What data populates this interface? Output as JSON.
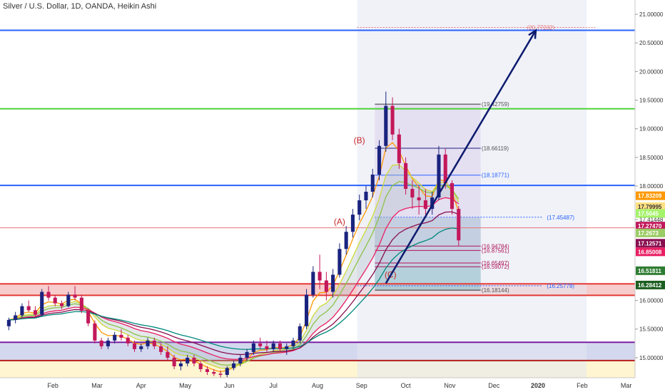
{
  "header": {
    "title": "Silver / U.S. Dollar, 1D, OANDA, Heikin Ashi"
  },
  "chart_data": {
    "type": "candlestick",
    "title": "Silver / U.S. Dollar, 1D, OANDA, Heikin Ashi",
    "y_range": [
      14.65,
      21.25
    ],
    "x_range": [
      -0.2,
      14.2
    ],
    "y_ticks": [
      "21.00000",
      "20.50000",
      "20.00000",
      "19.50000",
      "19.00000",
      "18.50000",
      "18.00000",
      "17.41448",
      "16.00000",
      "15.50000",
      "15.00000"
    ],
    "y_tick_values": [
      21.0,
      20.5,
      20.0,
      19.5,
      19.0,
      18.5,
      18.0,
      17.41448,
      16.0,
      15.5,
      15.0
    ],
    "x_ticks": [
      {
        "label": "Feb",
        "m": 1
      },
      {
        "label": "Mar",
        "m": 2
      },
      {
        "label": "Apr",
        "m": 3
      },
      {
        "label": "May",
        "m": 4
      },
      {
        "label": "Jun",
        "m": 5
      },
      {
        "label": "Jul",
        "m": 6
      },
      {
        "label": "Aug",
        "m": 7
      },
      {
        "label": "Sep",
        "m": 8
      },
      {
        "label": "Oct",
        "m": 9
      },
      {
        "label": "Nov",
        "m": 10
      },
      {
        "label": "Dec",
        "m": 11
      },
      {
        "label": "2020",
        "m": 12
      },
      {
        "label": "Feb",
        "m": 13
      },
      {
        "label": "Mar",
        "m": 14
      }
    ],
    "horizontal_lines": [
      {
        "y": 20.72,
        "color": "#2962ff",
        "width": 2
      },
      {
        "y": 19.35,
        "color": "#4cd137",
        "width": 2
      },
      {
        "y": 18.01,
        "color": "#2962ff",
        "width": 2
      },
      {
        "y": 17.27,
        "color": "#e57373",
        "width": 1
      },
      {
        "y": 16.29,
        "color": "#e53935",
        "width": 2
      },
      {
        "y": 16.09,
        "color": "#e53935",
        "width": 2
      },
      {
        "y": 15.27,
        "color": "#7b1fa2",
        "width": 2
      },
      {
        "y": 14.95,
        "color": "#b71c1c",
        "width": 2
      }
    ],
    "zones": [
      {
        "y1": 16.29,
        "y2": 16.09,
        "color": "#ef9a9a",
        "opacity": 0.5
      },
      {
        "y1": 15.27,
        "y2": 14.95,
        "color": "#9fa8da",
        "opacity": 0.45
      },
      {
        "y1": 14.95,
        "y2": 14.65,
        "color": "#fff3c4",
        "opacity": 0.8
      }
    ],
    "level_labels": [
      {
        "text": "(20.77232)",
        "y": 20.77,
        "m": 11.75,
        "color": "#e57373"
      },
      {
        "text": "(19.42759)",
        "y": 19.43,
        "m": 10.72,
        "color": "#555555"
      },
      {
        "text": "(18.66119)",
        "y": 18.66,
        "m": 10.72,
        "color": "#555555"
      },
      {
        "text": "(18.18771)",
        "y": 18.19,
        "m": 10.72,
        "color": "#2962ff"
      },
      {
        "text": "(17.45487)",
        "y": 17.455,
        "m": 12.2,
        "color": "#2962ff"
      },
      {
        "text": "(16.94784)",
        "y": 16.95,
        "m": 10.72,
        "color": "#ad1457"
      },
      {
        "text": "(16.87561)",
        "y": 16.875,
        "m": 10.72,
        "color": "#ad1457"
      },
      {
        "text": "(16.65497)",
        "y": 16.655,
        "m": 10.72,
        "color": "#ad1457"
      },
      {
        "text": "(16.59072)",
        "y": 16.59,
        "m": 10.72,
        "color": "#ad1457"
      },
      {
        "text": "(16.25778)",
        "y": 16.258,
        "m": 12.2,
        "color": "#2962ff"
      },
      {
        "text": "(16.18144)",
        "y": 16.18,
        "m": 10.72,
        "color": "#555555"
      }
    ],
    "wave_labels": [
      {
        "text": "(B)",
        "m": 7.82,
        "y": 18.75
      },
      {
        "text": "(A)",
        "m": 7.37,
        "y": 17.33
      },
      {
        "text": "(C)",
        "m": 8.52,
        "y": 16.4
      }
    ],
    "price_badges": [
      {
        "text": "17.83209",
        "y": 17.83,
        "bg": "#ff9800",
        "fg": "#ffffff"
      },
      {
        "text": "17.79995",
        "y": 17.64,
        "bg": "#ffe082",
        "fg": "#333333"
      },
      {
        "text": "17.5045",
        "y": 17.52,
        "bg": "#a5f26b",
        "fg": "#ffffff"
      },
      {
        "text": "17.27470",
        "y": 17.3,
        "bg": "#c2185b",
        "fg": "#ffffff"
      },
      {
        "text": "17.2673",
        "y": 17.18,
        "bg": "#9ccc65",
        "fg": "#ffffff"
      },
      {
        "text": "17.12571",
        "y": 17.0,
        "bg": "#880e4f",
        "fg": "#ffffff"
      },
      {
        "text": "16.85008",
        "y": 16.85,
        "bg": "#e91e63",
        "fg": "#ffffff"
      },
      {
        "text": "16.51811",
        "y": 16.52,
        "bg": "#2e7d32",
        "fg": "#ffffff"
      },
      {
        "text": "16.28412",
        "y": 16.27,
        "bg": "#1b5e20",
        "fg": "#ffffff"
      }
    ],
    "arrow": {
      "from": {
        "m": 8.55,
        "y": 16.3
      },
      "to": {
        "m": 11.95,
        "y": 20.72
      }
    },
    "candles": [
      [
        0.0,
        15.55,
        15.7,
        15.48,
        15.66
      ],
      [
        0.15,
        15.66,
        15.8,
        15.6,
        15.74
      ],
      [
        0.3,
        15.74,
        15.95,
        15.7,
        15.9
      ],
      [
        0.45,
        15.9,
        16.0,
        15.8,
        15.83
      ],
      [
        0.6,
        15.83,
        15.9,
        15.7,
        15.75
      ],
      [
        0.75,
        15.75,
        16.2,
        15.72,
        16.15
      ],
      [
        0.9,
        16.15,
        16.25,
        16.0,
        16.05
      ],
      [
        1.05,
        16.05,
        16.1,
        15.9,
        15.95
      ],
      [
        1.2,
        15.95,
        16.0,
        15.85,
        15.9
      ],
      [
        1.35,
        15.9,
        16.15,
        15.88,
        16.1
      ],
      [
        1.5,
        16.1,
        16.25,
        16.0,
        16.05
      ],
      [
        1.65,
        16.05,
        16.1,
        15.78,
        15.82
      ],
      [
        1.8,
        15.82,
        15.85,
        15.55,
        15.6
      ],
      [
        1.95,
        15.6,
        15.65,
        15.25,
        15.3
      ],
      [
        2.1,
        15.3,
        15.35,
        15.15,
        15.2
      ],
      [
        2.25,
        15.2,
        15.35,
        15.15,
        15.3
      ],
      [
        2.4,
        15.3,
        15.45,
        15.25,
        15.4
      ],
      [
        2.55,
        15.4,
        15.5,
        15.3,
        15.35
      ],
      [
        2.7,
        15.35,
        15.4,
        15.2,
        15.25
      ],
      [
        2.85,
        15.25,
        15.3,
        15.1,
        15.15
      ],
      [
        3.0,
        15.15,
        15.25,
        15.1,
        15.2
      ],
      [
        3.15,
        15.2,
        15.35,
        15.15,
        15.3
      ],
      [
        3.3,
        15.3,
        15.35,
        15.15,
        15.2
      ],
      [
        3.45,
        15.2,
        15.25,
        15.05,
        15.1
      ],
      [
        3.6,
        15.1,
        15.2,
        14.95,
        15.0
      ],
      [
        3.75,
        15.0,
        15.05,
        14.8,
        14.85
      ],
      [
        3.9,
        14.85,
        14.95,
        14.78,
        14.9
      ],
      [
        4.05,
        14.9,
        15.05,
        14.85,
        15.0
      ],
      [
        4.2,
        15.0,
        15.05,
        14.85,
        14.9
      ],
      [
        4.35,
        14.9,
        14.95,
        14.75,
        14.8
      ],
      [
        4.5,
        14.8,
        14.85,
        14.7,
        14.75
      ],
      [
        4.65,
        14.75,
        14.8,
        14.68,
        14.72
      ],
      [
        4.8,
        14.72,
        14.78,
        14.65,
        14.7
      ],
      [
        4.95,
        14.7,
        14.85,
        14.66,
        14.82
      ],
      [
        5.1,
        14.82,
        14.95,
        14.78,
        14.9
      ],
      [
        5.25,
        14.9,
        15.05,
        14.85,
        15.0
      ],
      [
        5.4,
        15.0,
        15.15,
        14.95,
        15.1
      ],
      [
        5.55,
        15.1,
        15.3,
        15.05,
        15.25
      ],
      [
        5.7,
        15.25,
        15.35,
        15.15,
        15.2
      ],
      [
        5.85,
        15.2,
        15.3,
        15.1,
        15.15
      ],
      [
        6.0,
        15.15,
        15.3,
        15.1,
        15.25
      ],
      [
        6.15,
        15.25,
        15.3,
        15.1,
        15.15
      ],
      [
        6.3,
        15.15,
        15.25,
        15.05,
        15.2
      ],
      [
        6.45,
        15.2,
        15.35,
        15.15,
        15.3
      ],
      [
        6.6,
        15.3,
        15.6,
        15.25,
        15.55
      ],
      [
        6.75,
        15.55,
        16.2,
        15.5,
        16.1
      ],
      [
        6.9,
        16.1,
        16.6,
        16.05,
        16.5
      ],
      [
        7.05,
        16.5,
        16.8,
        16.2,
        16.35
      ],
      [
        7.2,
        16.35,
        16.5,
        16.0,
        16.15
      ],
      [
        7.35,
        16.15,
        16.55,
        16.05,
        16.45
      ],
      [
        7.5,
        16.45,
        17.0,
        16.4,
        16.9
      ],
      [
        7.65,
        16.9,
        17.3,
        16.8,
        17.2
      ],
      [
        7.8,
        17.2,
        17.6,
        17.1,
        17.5
      ],
      [
        7.95,
        17.5,
        17.85,
        17.4,
        17.75
      ],
      [
        8.1,
        17.75,
        18.0,
        17.6,
        17.9
      ],
      [
        8.25,
        17.9,
        18.3,
        17.8,
        18.2
      ],
      [
        8.4,
        18.2,
        18.8,
        18.1,
        18.7
      ],
      [
        8.55,
        18.7,
        19.65,
        18.6,
        19.4
      ],
      [
        8.7,
        19.4,
        19.55,
        18.8,
        18.9
      ],
      [
        8.85,
        18.9,
        19.0,
        18.3,
        18.4
      ],
      [
        9.0,
        18.4,
        18.5,
        17.85,
        17.95
      ],
      [
        9.15,
        17.95,
        18.1,
        17.6,
        17.8
      ],
      [
        9.3,
        17.8,
        18.0,
        17.5,
        17.75
      ],
      [
        9.45,
        17.75,
        17.95,
        17.5,
        17.6
      ],
      [
        9.6,
        17.6,
        17.9,
        17.5,
        17.8
      ],
      [
        9.75,
        17.8,
        18.7,
        17.75,
        18.55
      ],
      [
        9.9,
        18.55,
        18.65,
        17.95,
        18.05
      ],
      [
        10.05,
        18.05,
        18.1,
        17.5,
        17.6
      ],
      [
        10.2,
        17.6,
        17.65,
        16.95,
        17.05
      ]
    ]
  }
}
